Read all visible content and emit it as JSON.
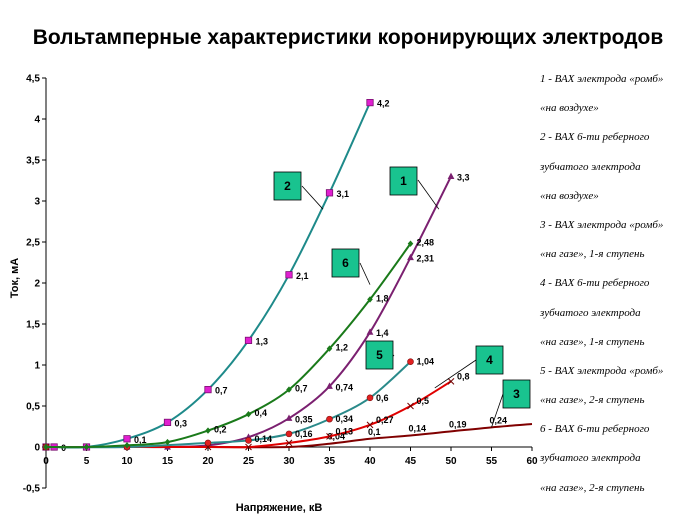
{
  "title": "Вольтамперные характеристики коронирующих электродов",
  "legend_lines": [
    "1  -  ВАХ  электрода «ромб»",
    "«на воздухе»",
    "2  -  ВАХ  6-ти  реберного",
    "зубчатого  электрода",
    "«на  воздухе»",
    "3  -  ВАХ  электрода  «ромб»",
    "«на  газе»,  1-я  ступень",
    "4  -  ВАХ  6-ти  реберного",
    "зубчатого  электрода",
    "«на  газе»,  1-я  ступень",
    "5  -  ВАХ  электрода  «ромб»",
    "«на  газе»,  2-я  ступень",
    "6  -  ВАХ  6-ти  реберного",
    "зубчатого  электрода",
    "«на  газе»,  2-я  ступень"
  ],
  "chart_data": {
    "type": "line",
    "xlabel": "Напряжение,  кВ",
    "ylabel": "Ток,  мА",
    "xlim": [
      0,
      60
    ],
    "ylim": [
      -0.5,
      4.5
    ],
    "xticks": [
      0,
      5,
      10,
      15,
      20,
      25,
      30,
      35,
      40,
      45,
      50,
      55,
      60
    ],
    "yticks": [
      -0.5,
      0,
      0.5,
      1,
      1.5,
      2,
      2.5,
      3,
      3.5,
      4,
      4.5
    ],
    "grid": false,
    "series": [
      {
        "name": "1",
        "color": "#7b2070",
        "marker": "triangle",
        "x": [
          0,
          5,
          10,
          15,
          20,
          25,
          30,
          35,
          40,
          45,
          50
        ],
        "y": [
          0,
          0,
          0,
          0,
          0.02,
          0.12,
          0.35,
          0.74,
          1.4,
          2.31,
          3.3
        ],
        "labels": [
          "",
          "",
          "",
          "",
          "",
          "",
          "0,35",
          "0,74",
          "1,4",
          "2,31",
          "3,3"
        ]
      },
      {
        "name": "2",
        "color": "#1e8a8a",
        "marker": "square",
        "x": [
          0,
          1,
          5,
          10,
          15,
          20,
          25,
          30,
          35,
          40
        ],
        "y": [
          0,
          0,
          0,
          0.1,
          0.3,
          0.7,
          1.3,
          2.1,
          3.1,
          4.2
        ],
        "labels": [
          "",
          "0",
          "",
          "0,1",
          "0,3",
          "0,7",
          "1,3",
          "2,1",
          "3,1",
          "4,2"
        ]
      },
      {
        "name": "3",
        "color": "#800000",
        "marker": "none",
        "x": [
          0,
          10,
          20,
          30,
          35,
          40,
          45,
          50,
          55,
          60
        ],
        "y": [
          0,
          0,
          0,
          0,
          0.04,
          0.1,
          0.14,
          0.19,
          0.24,
          0.28
        ],
        "labels": [
          "",
          "",
          "",
          "",
          "0,04",
          "0,1",
          "0,14",
          "0,19",
          "0,24",
          ""
        ]
      },
      {
        "name": "4",
        "color": "#e00000",
        "marker": "x",
        "x": [
          0,
          20,
          25,
          30,
          35,
          40,
          45,
          50
        ],
        "y": [
          0,
          0,
          0,
          0.05,
          0.13,
          0.27,
          0.5,
          0.8
        ],
        "labels": [
          "",
          "",
          "",
          "",
          "0,13",
          "0,27",
          "0,5",
          "0,8"
        ]
      },
      {
        "name": "5",
        "color": "#2a8a8a",
        "marker": "circle",
        "x": [
          0,
          10,
          20,
          25,
          30,
          35,
          40,
          45
        ],
        "y": [
          0,
          0,
          0.05,
          0.08,
          0.16,
          0.34,
          0.6,
          1.04
        ],
        "labels": [
          "",
          "",
          "",
          "",
          "0,16",
          "0,34",
          "0,6",
          "1,04"
        ]
      },
      {
        "name": "6",
        "color": "#1a7a1a",
        "marker": "diamond",
        "x": [
          0,
          5,
          10,
          15,
          20,
          25,
          30,
          35,
          40,
          45
        ],
        "y": [
          0,
          0,
          0.02,
          0.06,
          0.2,
          0.4,
          0.7,
          1.2,
          1.8,
          2.48
        ],
        "labels": [
          "",
          "",
          "",
          "",
          "0,2",
          "0,4",
          "0,7",
          "1,2",
          "1,8",
          "2,48"
        ]
      }
    ],
    "extra_labels": [
      "0,14"
    ],
    "callouts": [
      {
        "text": "1",
        "color": "#19c38f"
      },
      {
        "text": "2",
        "color": "#19c38f"
      },
      {
        "text": "3",
        "color": "#19c38f"
      },
      {
        "text": "4",
        "color": "#19c38f"
      },
      {
        "text": "5",
        "color": "#19c38f"
      },
      {
        "text": "6",
        "color": "#19c38f"
      }
    ]
  }
}
